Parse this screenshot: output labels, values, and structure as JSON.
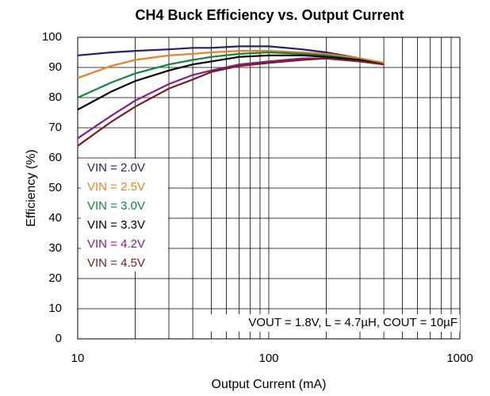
{
  "chart_data": {
    "type": "line",
    "title": "CH4 Buck Efficiency vs. Output Current",
    "x_label": "Output Current (mA)",
    "y_label": "Efficiency (%)",
    "annotation": "VOUT = 1.8V, L = 4.7µH, COUT = 10µF",
    "x": [
      10,
      15,
      20,
      30,
      40,
      50,
      70,
      100,
      150,
      200,
      300,
      400
    ],
    "series": [
      {
        "name": "VIN = 2.0V",
        "color": "#1f1f7a",
        "values": [
          94,
          95,
          95.5,
          96,
          96.5,
          96.5,
          97,
          97,
          96,
          95,
          93,
          91.5
        ]
      },
      {
        "name": "VIN = 2.5V",
        "color": "#f07f20",
        "values": [
          86.5,
          90.5,
          92.5,
          94,
          94.5,
          95,
          95.5,
          95.5,
          95,
          94.5,
          93,
          91.5
        ]
      },
      {
        "name": "VIN = 3.0V",
        "color": "#0a8a3a",
        "values": [
          80,
          85,
          88,
          91,
          92.5,
          93.5,
          94.5,
          95,
          94.5,
          94,
          92.5,
          91
        ]
      },
      {
        "name": "VIN = 3.3V",
        "color": "#000000",
        "values": [
          76,
          82,
          85.5,
          89,
          91,
          92,
          93.5,
          94,
          94,
          93.5,
          92.5,
          91
        ]
      },
      {
        "name": "VIN = 4.2V",
        "color": "#8b1a8b",
        "values": [
          66.5,
          74,
          79,
          84.5,
          87.5,
          89,
          91,
          92,
          93,
          93,
          92,
          91
        ]
      },
      {
        "name": "VIN = 4.5V",
        "color": "#7a1f1f",
        "values": [
          64,
          72,
          77,
          83,
          86,
          88.5,
          90.5,
          91.5,
          92.5,
          93,
          92,
          91
        ]
      }
    ],
    "xlim": [
      10,
      1000
    ],
    "xticks": [
      10,
      100,
      1000
    ],
    "x_log": true,
    "ylim": [
      0,
      100
    ],
    "yticks": [
      0,
      10,
      20,
      30,
      40,
      50,
      60,
      70,
      80,
      90,
      100
    ],
    "grid": true,
    "legend": "left"
  }
}
